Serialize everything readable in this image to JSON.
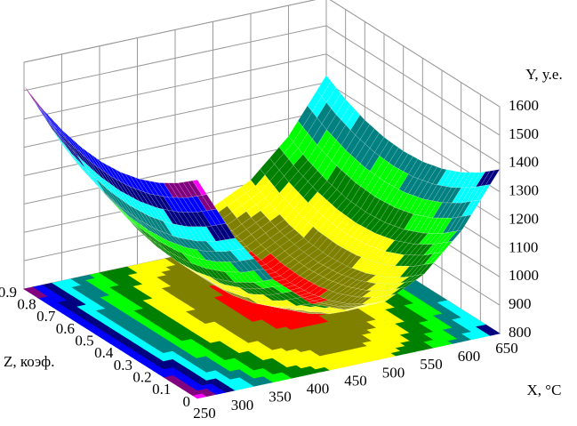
{
  "chart_data": {
    "type": "surface",
    "x_label": "X, °C",
    "y_label": "Y, у.е.",
    "z_label": "Z, коэф.",
    "x": [
      250,
      300,
      350,
      400,
      450,
      500,
      550,
      600,
      650
    ],
    "z": [
      0,
      0.1,
      0.2,
      0.3,
      0.4,
      0.5,
      0.6,
      0.7,
      0.8,
      0.9
    ],
    "values": [
      [
        1571,
        1517,
        1475,
        1445,
        1427,
        1421,
        1427,
        1445,
        1475,
        1517
      ],
      [
        1337,
        1283,
        1241,
        1211,
        1193,
        1187,
        1193,
        1211,
        1241,
        1283
      ],
      [
        1163,
        1109,
        1067,
        1037,
        1019,
        1013,
        1019,
        1037,
        1067,
        1109
      ],
      [
        1049,
        995,
        953,
        923,
        905,
        899,
        905,
        923,
        953,
        995
      ],
      [
        995,
        941,
        899,
        869,
        851,
        845,
        851,
        869,
        899,
        941
      ],
      [
        1001,
        947,
        905,
        875,
        857,
        851,
        857,
        875,
        905,
        947
      ],
      [
        1067,
        1013,
        971,
        941,
        923,
        917,
        923,
        941,
        971,
        1013
      ],
      [
        1193,
        1139,
        1097,
        1067,
        1049,
        1043,
        1049,
        1067,
        1097,
        1139
      ],
      [
        1379,
        1325,
        1283,
        1253,
        1235,
        1229,
        1235,
        1253,
        1283,
        1325
      ]
    ],
    "xlim": [
      250,
      650
    ],
    "zlim": [
      0,
      0.9
    ],
    "ylim": [
      800,
      1600
    ],
    "xticks": [
      250,
      300,
      350,
      400,
      450,
      500,
      550,
      600,
      650
    ],
    "zticks": [
      0,
      0.1,
      0.2,
      0.3,
      0.4,
      0.5,
      0.6,
      0.7,
      0.8,
      0.9
    ],
    "yticks": [
      800,
      900,
      1000,
      1100,
      1200,
      1300,
      1400,
      1500,
      1600
    ],
    "grid": true,
    "colors": [
      "#ff0000",
      "#808000",
      "#ffff00",
      "#008000",
      "#00ff00",
      "#008080",
      "#00ffff",
      "#000080",
      "#0000ff",
      "#800080",
      "#ff00ff"
    ]
  }
}
